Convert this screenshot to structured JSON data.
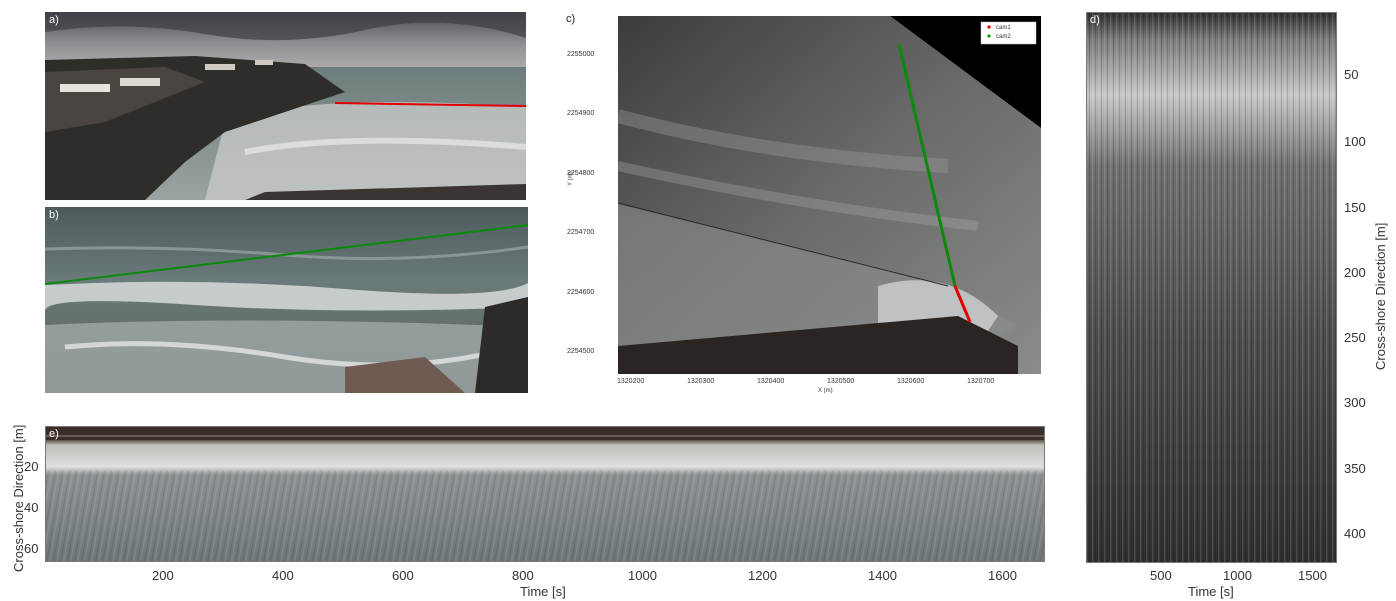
{
  "panels": {
    "a": {
      "label": "a)"
    },
    "b": {
      "label": "b)"
    },
    "c": {
      "label": "c)"
    },
    "d": {
      "label": "d)"
    },
    "e": {
      "label": "e)"
    }
  },
  "panel_c": {
    "xlabel": "X (m)",
    "ylabel": "Y (m)",
    "xticks": [
      "1320200",
      "1320300",
      "1320400",
      "1320500",
      "1320600",
      "1320700"
    ],
    "yticks": [
      "2255000",
      "2254900",
      "2254800",
      "2254700",
      "2254600",
      "2254500"
    ],
    "legend": [
      {
        "name": "cam1",
        "color": "#e00000"
      },
      {
        "name": "cam2",
        "color": "#0a9a0a"
      }
    ]
  },
  "panel_d": {
    "xlabel": "Time [s]",
    "ylabel": "Cross-shore Direction [m]",
    "xticks": [
      "500",
      "1000",
      "1500"
    ],
    "yticks": [
      "50",
      "100",
      "150",
      "200",
      "250",
      "300",
      "350",
      "400"
    ]
  },
  "panel_e": {
    "xlabel": "Time [s]",
    "ylabel": "Cross-shore Direction [m]",
    "xticks": [
      "200",
      "400",
      "600",
      "800",
      "1000",
      "1200",
      "1400",
      "1600"
    ],
    "yticks": [
      "20",
      "40",
      "60"
    ]
  },
  "colors": {
    "cam1_line": "#e00000",
    "cam2_line": "#0a8a0a"
  }
}
